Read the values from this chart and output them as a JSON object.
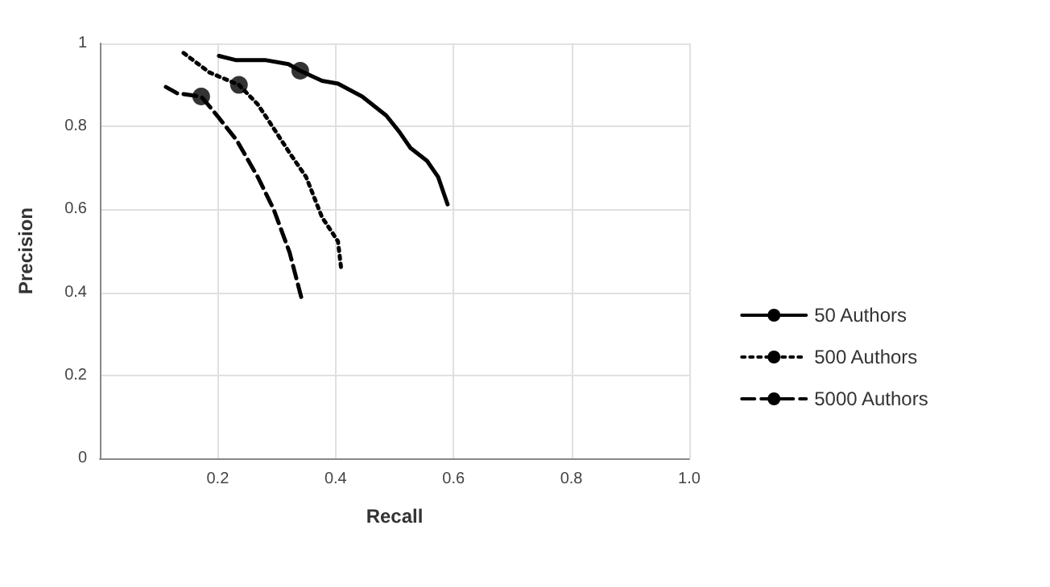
{
  "chart_data": {
    "type": "line",
    "xlabel": "Recall",
    "ylabel": "Precision",
    "xlim": [
      0,
      1
    ],
    "ylim": [
      0,
      1
    ],
    "xticks": [
      0.2,
      0.4,
      0.6,
      0.8,
      {
        "value": 1,
        "label": "1.0"
      }
    ],
    "yticks": [
      0,
      0.2,
      0.4,
      0.6,
      0.8,
      1
    ],
    "grid": true,
    "legend": "right",
    "marker": "none",
    "series": [
      {
        "name": "50 Authors",
        "color": "#000000",
        "line_style": "solid",
        "x": [
          0.202,
          0.23,
          0.28,
          0.32,
          0.34,
          0.377,
          0.404,
          0.445,
          0.486,
          0.508,
          0.527,
          0.555,
          0.574,
          0.59
        ],
        "values": [
          0.97,
          0.96,
          0.96,
          0.95,
          0.934,
          0.91,
          0.903,
          0.872,
          0.826,
          0.787,
          0.748,
          0.717,
          0.678,
          0.612
        ]
      },
      {
        "name": "500 Authors",
        "color": "#000000",
        "line_style": "dotted",
        "x": [
          0.142,
          0.186,
          0.236,
          0.268,
          0.295,
          0.322,
          0.35,
          0.377,
          0.404,
          0.41
        ],
        "values": [
          0.977,
          0.93,
          0.9,
          0.853,
          0.795,
          0.736,
          0.678,
          0.581,
          0.523,
          0.45
        ]
      },
      {
        "name": "5000 Authors",
        "color": "#000000",
        "line_style": "dashed",
        "x": [
          0.112,
          0.131,
          0.172,
          0.199,
          0.232,
          0.268,
          0.295,
          0.322,
          0.344
        ],
        "values": [
          0.895,
          0.88,
          0.872,
          0.826,
          0.767,
          0.678,
          0.6,
          0.496,
          0.376
        ]
      },
      {
        "type": "scatter",
        "color": "#000000",
        "marker": "circle",
        "x": [
          0.34,
          0.236,
          0.172
        ],
        "values": [
          0.934,
          0.9,
          0.872
        ]
      }
    ]
  }
}
